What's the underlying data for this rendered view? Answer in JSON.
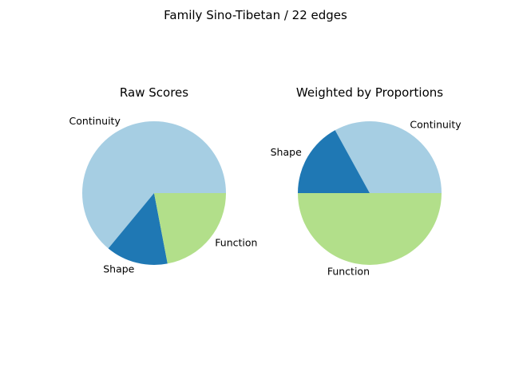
{
  "figure": {
    "title": "Family Sino-Tibetan / 22 edges"
  },
  "chart_data": [
    {
      "type": "pie",
      "title": "Raw Scores",
      "start_angle_deg": 0,
      "direction": "counterclockwise",
      "slices": [
        {
          "label": "Continuity",
          "value": 64,
          "color": "#a6cee3"
        },
        {
          "label": "Shape",
          "value": 14,
          "color": "#1f78b4"
        },
        {
          "label": "Function",
          "value": 22,
          "color": "#b2df8a"
        }
      ]
    },
    {
      "type": "pie",
      "title": "Weighted by Proportions",
      "start_angle_deg": 0,
      "direction": "counterclockwise",
      "slices": [
        {
          "label": "Continuity",
          "value": 33,
          "color": "#a6cee3"
        },
        {
          "label": "Shape",
          "value": 17,
          "color": "#1f78b4"
        },
        {
          "label": "Function",
          "value": 50,
          "color": "#b2df8a"
        }
      ]
    }
  ]
}
